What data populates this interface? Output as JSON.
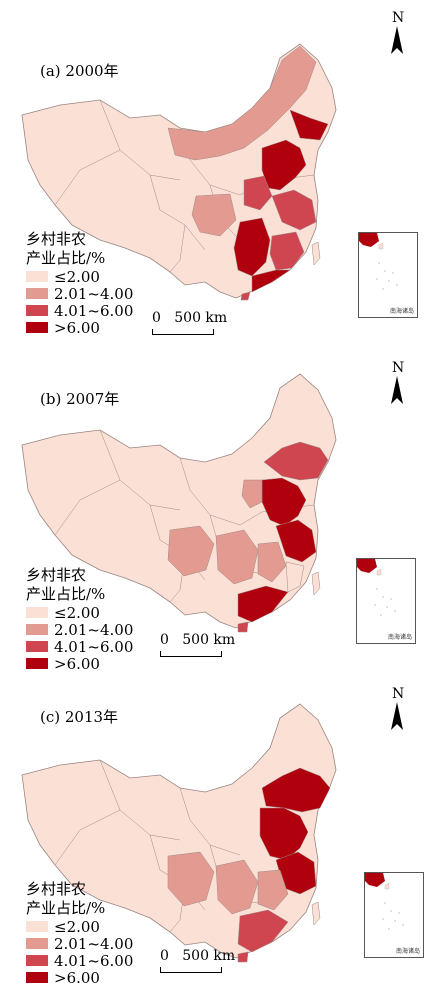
{
  "legend": {
    "title_line1": "乡村非农",
    "title_line2": "产业占比/%",
    "classes": [
      {
        "label": "≤2.00",
        "color": "#fbe0d6"
      },
      {
        "label": "2.01~4.00",
        "color": "#e39a91"
      },
      {
        "label": "4.01~6.00",
        "color": "#cf4650"
      },
      {
        "label": ">6.00",
        "color": "#b0000d"
      }
    ]
  },
  "north_label": "N",
  "scale_label": "0   500 km",
  "inset_label": "南海诸岛",
  "panels": [
    {
      "title": "(a) 2000年"
    },
    {
      "title": "(b) 2007年"
    },
    {
      "title": "(c) 2013年"
    }
  ]
}
